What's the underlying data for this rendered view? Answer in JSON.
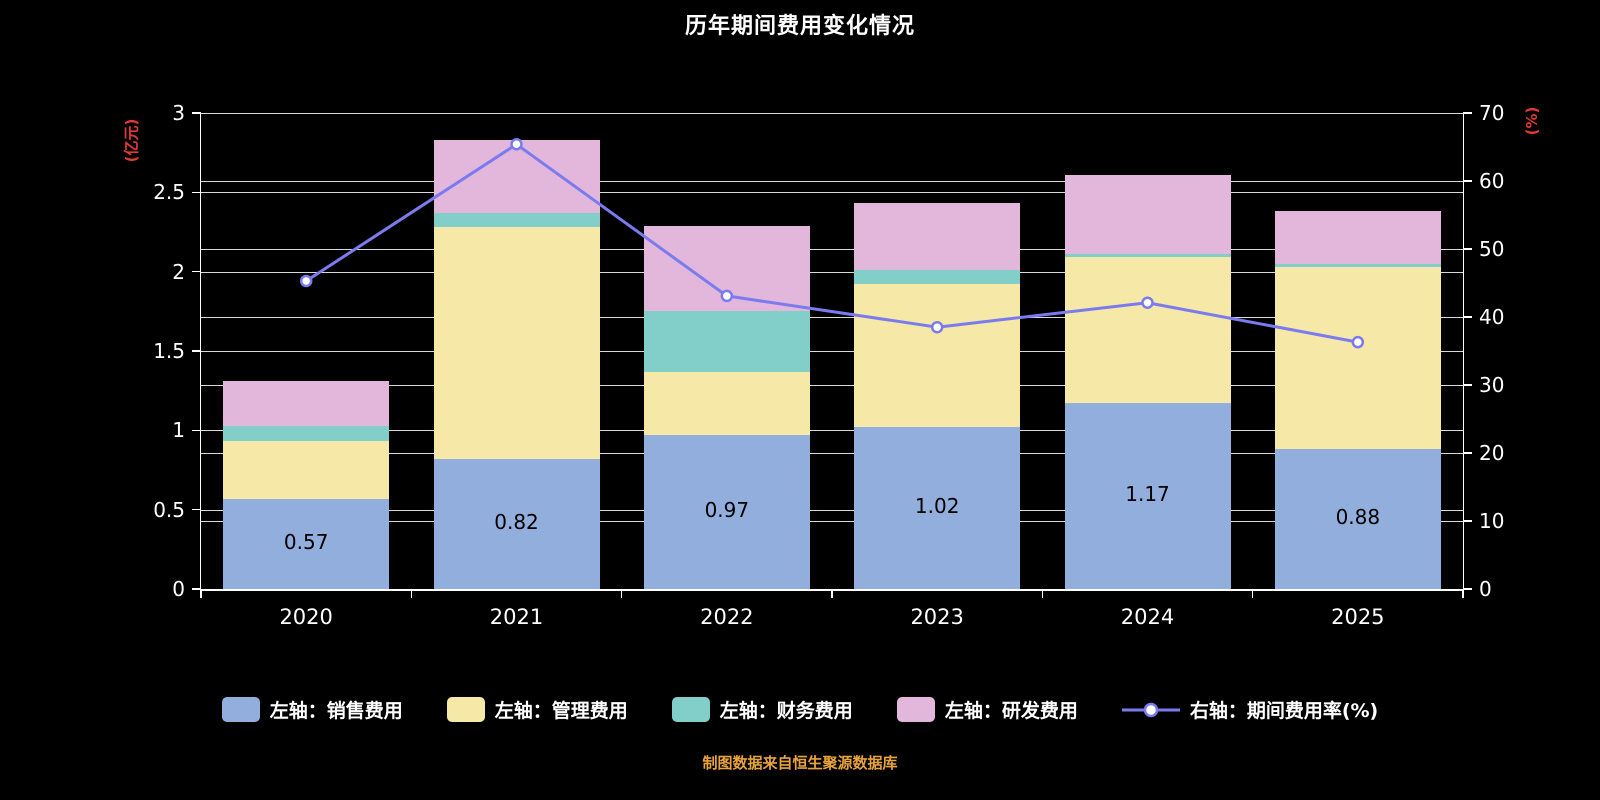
{
  "title": "历年期间费用变化情况",
  "footer": "制图数据来自恒生聚源数据库",
  "left_axis": {
    "unit": "(亿元)",
    "tick_values": [
      0,
      0.5,
      1,
      1.5,
      2,
      2.5,
      3
    ]
  },
  "right_axis": {
    "unit": "(%)",
    "tick_values": [
      0,
      10,
      20,
      30,
      40,
      50,
      60,
      70
    ]
  },
  "colors": {
    "background": "#000000",
    "text": "#ffffff",
    "axis_unit": "#e53935",
    "footer": "#e8a33d",
    "data_label": "#000000",
    "gridline": "rgba(255,255,255,0.85)"
  },
  "chart_data": {
    "type": "bar",
    "subtype": "stacked-bars-with-line",
    "title": "历年期间费用变化情况",
    "categories": [
      "2020",
      "2021",
      "2022",
      "2023",
      "2024",
      "2025"
    ],
    "series": [
      {
        "name": "左轴：销售费用",
        "kind": "bar",
        "color": "#92AEDC",
        "values": [
          0.57,
          0.82,
          0.97,
          1.02,
          1.17,
          0.88
        ],
        "data_labels": [
          "0.57",
          "0.82",
          "0.97",
          "1.02",
          "1.17",
          "0.88"
        ]
      },
      {
        "name": "左轴：管理费用",
        "kind": "bar",
        "color": "#F6E8A6",
        "values": [
          0.36,
          1.46,
          0.4,
          0.9,
          0.92,
          1.15
        ]
      },
      {
        "name": "左轴：财务费用",
        "kind": "bar",
        "color": "#82CEC8",
        "values": [
          0.1,
          0.09,
          0.38,
          0.09,
          0.02,
          0.02
        ]
      },
      {
        "name": "左轴：研发费用",
        "kind": "bar",
        "color": "#E3B7DB",
        "values": [
          0.28,
          0.46,
          0.54,
          0.42,
          0.5,
          0.33
        ]
      },
      {
        "name": "右轴：期间费用率(%)",
        "kind": "line",
        "color": "#7B7BF0",
        "values": [
          45.3,
          65.4,
          43.1,
          38.5,
          42.1,
          36.3
        ]
      }
    ],
    "left_ylim": [
      0,
      3
    ],
    "right_ylim": [
      0,
      70
    ],
    "grid": true,
    "legend_position": "bottom"
  }
}
